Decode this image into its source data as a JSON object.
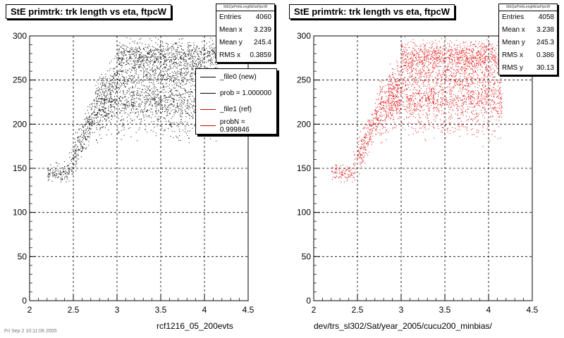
{
  "panels": [
    {
      "title": "StE primtrk: trk length vs eta, ftpcW",
      "stats_name": "StEQaPrtrkLengthEtaFtpcW",
      "stats": [
        {
          "label": "Entries",
          "value": "4060"
        },
        {
          "label": "Mean x",
          "value": "3.239"
        },
        {
          "label": "Mean y",
          "value": "245.4"
        },
        {
          "label": "RMS x",
          "value": "0.3859"
        }
      ],
      "legend": [
        {
          "label": "_file0 (new)",
          "color": "#000000"
        },
        {
          "label": "prob = 1.000000",
          "color": "#000000"
        },
        {
          "label": "_file1 (ref)",
          "color": "#d40000"
        },
        {
          "label": "probN = 0.999846",
          "color": "#d40000"
        }
      ],
      "footer": "rcf1216_05_200evts",
      "marker_color": "#000000"
    },
    {
      "title": "StE primtrk: trk length vs eta, ftpcW",
      "stats_name": "StEQaPrtrkLengthEtaFtpcW",
      "stats": [
        {
          "label": "Entries",
          "value": "4058"
        },
        {
          "label": "Mean x",
          "value": "3.238"
        },
        {
          "label": "Mean y",
          "value": "245.3"
        },
        {
          "label": "RMS x",
          "value": "0.386"
        },
        {
          "label": "RMS y",
          "value": "30.13"
        }
      ],
      "footer": "dev/trs_sl302/Sat/year_2005/cucu200_minbias/",
      "marker_color": "#e00000"
    }
  ],
  "date_stamp": "Fri Sep 2 10:11:06 2005",
  "chart_data": [
    {
      "type": "scatter",
      "title": "StE primtrk: trk length vs eta, ftpcW",
      "xlim": [
        2,
        4.5
      ],
      "ylim": [
        0,
        300
      ],
      "x_ticks": [
        "2",
        "2.5",
        "3",
        "3.5",
        "4",
        "4.5"
      ],
      "y_ticks": [
        "0",
        "50",
        "100",
        "150",
        "200",
        "250",
        "300"
      ],
      "grid": true,
      "entries": 4060,
      "mean_x": 3.239,
      "mean_y": 245.4,
      "rms_x": 0.3859,
      "color": "#000000"
    },
    {
      "type": "scatter",
      "title": "StE primtrk: trk length vs eta, ftpcW",
      "xlim": [
        2,
        4.5
      ],
      "ylim": [
        0,
        300
      ],
      "x_ticks": [
        "2",
        "2.5",
        "3",
        "3.5",
        "4",
        "4.5"
      ],
      "y_ticks": [
        "0",
        "50",
        "100",
        "150",
        "200",
        "250",
        "300"
      ],
      "grid": true,
      "entries": 4058,
      "mean_x": 3.238,
      "mean_y": 245.3,
      "rms_x": 0.386,
      "rms_y": 30.13,
      "color": "#e00000"
    }
  ]
}
